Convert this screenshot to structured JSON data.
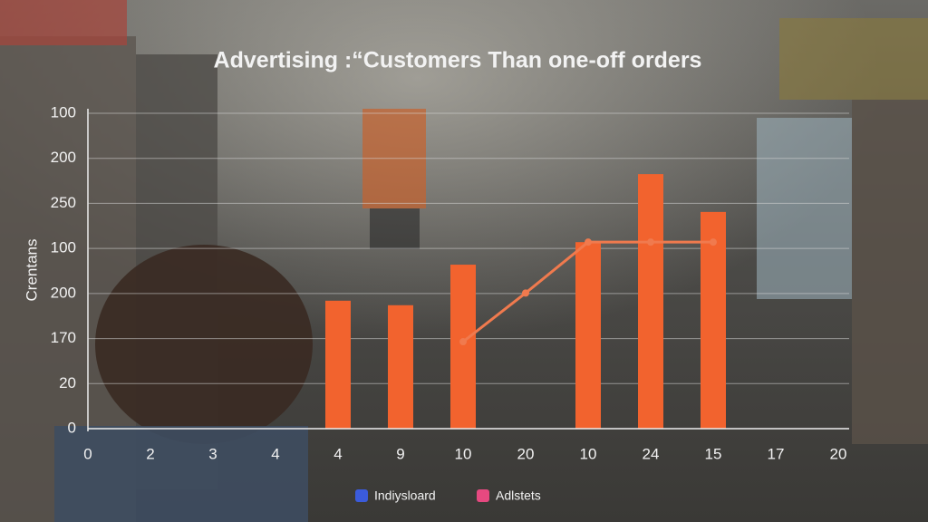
{
  "chart_data": {
    "type": "bar",
    "title": "Advertising :“Customers  Than one-off orders",
    "y_label": "Crentans",
    "categories": [
      "0",
      "2",
      "3",
      "4",
      "4",
      "9",
      "10",
      "20",
      "10",
      "24",
      "15",
      "17",
      "20"
    ],
    "ylim": [
      0,
      7
    ],
    "yticks": [
      0,
      {
        "value": 1,
        "label": "20"
      },
      {
        "value": 2,
        "label": "170"
      },
      {
        "value": 3,
        "label": "200"
      },
      {
        "value": 4,
        "label": "100"
      },
      {
        "value": 5,
        "label": "250"
      },
      {
        "value": 6,
        "label": "200"
      },
      {
        "value": 7,
        "label": "100"
      }
    ],
    "grid": true,
    "series": [
      {
        "name": "Adlstets",
        "type": "bar",
        "color": "#f2632e",
        "values": [
          null,
          null,
          null,
          null,
          2.84,
          2.74,
          3.64,
          null,
          4.14,
          5.65,
          4.81,
          null,
          null
        ]
      },
      {
        "name": "Indiysloard",
        "type": "line",
        "color": "#f07a4e",
        "values": [
          null,
          null,
          null,
          null,
          null,
          null,
          1.93,
          3.01,
          4.14,
          4.14,
          4.14,
          null,
          null
        ]
      }
    ]
  }
}
